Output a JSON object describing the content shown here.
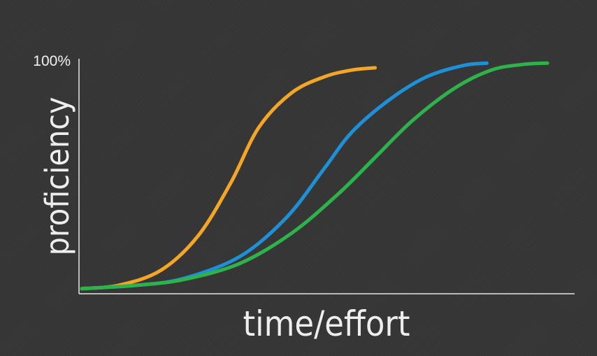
{
  "chart_data": {
    "type": "line",
    "title": "",
    "xlabel": "time/effort",
    "ylabel": "proficiency",
    "ylim": [
      0,
      100
    ],
    "y_tick_labels": [
      {
        "value": 100,
        "label": "100%"
      }
    ],
    "x_tick_labels": [],
    "grid": false,
    "legend": "none",
    "series": [
      {
        "color": "#f5a623",
        "points": [
          [
            0.0,
            1.0
          ],
          [
            0.08,
            2.5
          ],
          [
            0.17,
            9.0
          ],
          [
            0.25,
            24.0
          ],
          [
            0.32,
            47.0
          ],
          [
            0.38,
            71.0
          ],
          [
            0.45,
            86.0
          ],
          [
            0.52,
            93.0
          ],
          [
            0.58,
            96.0
          ],
          [
            0.63,
            97.0
          ]
        ]
      },
      {
        "color": "#1e90d8",
        "points": [
          [
            0.0,
            1.0
          ],
          [
            0.12,
            2.5
          ],
          [
            0.22,
            5.5
          ],
          [
            0.34,
            15.0
          ],
          [
            0.44,
            32.0
          ],
          [
            0.52,
            53.0
          ],
          [
            0.58,
            69.0
          ],
          [
            0.66,
            83.0
          ],
          [
            0.74,
            93.0
          ],
          [
            0.82,
            98.0
          ],
          [
            0.87,
            99.0
          ]
        ]
      },
      {
        "color": "#2db34a",
        "points": [
          [
            0.0,
            1.0
          ],
          [
            0.12,
            2.5
          ],
          [
            0.22,
            5.0
          ],
          [
            0.34,
            12.0
          ],
          [
            0.45,
            25.0
          ],
          [
            0.55,
            42.0
          ],
          [
            0.63,
            58.0
          ],
          [
            0.71,
            74.0
          ],
          [
            0.8,
            88.0
          ],
          [
            0.88,
            96.0
          ],
          [
            0.95,
            98.5
          ],
          [
            1.0,
            99.0
          ]
        ]
      }
    ]
  }
}
